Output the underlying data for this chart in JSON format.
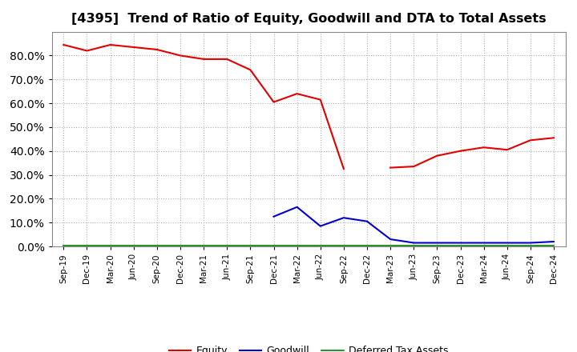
{
  "title": "[4395]  Trend of Ratio of Equity, Goodwill and DTA to Total Assets",
  "x_labels": [
    "Sep-19",
    "Dec-19",
    "Mar-20",
    "Jun-20",
    "Sep-20",
    "Dec-20",
    "Mar-21",
    "Jun-21",
    "Sep-21",
    "Dec-21",
    "Mar-22",
    "Jun-22",
    "Sep-22",
    "Dec-22",
    "Mar-23",
    "Jun-23",
    "Sep-23",
    "Dec-23",
    "Mar-24",
    "Jun-24",
    "Sep-24",
    "Dec-24"
  ],
  "equity": [
    84.5,
    82.0,
    84.5,
    83.5,
    82.5,
    80.0,
    78.5,
    78.5,
    74.0,
    60.5,
    64.0,
    61.5,
    32.5,
    null,
    33.0,
    33.5,
    38.0,
    40.0,
    41.5,
    40.5,
    44.5,
    45.5
  ],
  "goodwill": [
    null,
    null,
    null,
    null,
    null,
    null,
    null,
    null,
    null,
    12.5,
    16.5,
    8.5,
    12.0,
    10.5,
    3.0,
    1.5,
    1.5,
    1.5,
    1.5,
    1.5,
    1.5,
    2.0
  ],
  "dta": [
    0.3,
    0.3,
    0.3,
    0.3,
    0.3,
    0.3,
    0.3,
    0.3,
    0.3,
    0.3,
    0.3,
    0.3,
    0.3,
    0.3,
    0.3,
    0.3,
    0.3,
    0.3,
    0.3,
    0.3,
    0.3,
    0.3
  ],
  "equity_color": "#e00000",
  "goodwill_color": "#0000cc",
  "dta_color": "#008000",
  "ylim": [
    0,
    90
  ],
  "yticks": [
    0,
    10,
    20,
    30,
    40,
    50,
    60,
    70,
    80
  ],
  "background_color": "#ffffff",
  "grid_color": "#b0b0b0",
  "title_fontsize": 11.5,
  "legend_labels": [
    "Equity",
    "Goodwill",
    "Deferred Tax Assets"
  ]
}
